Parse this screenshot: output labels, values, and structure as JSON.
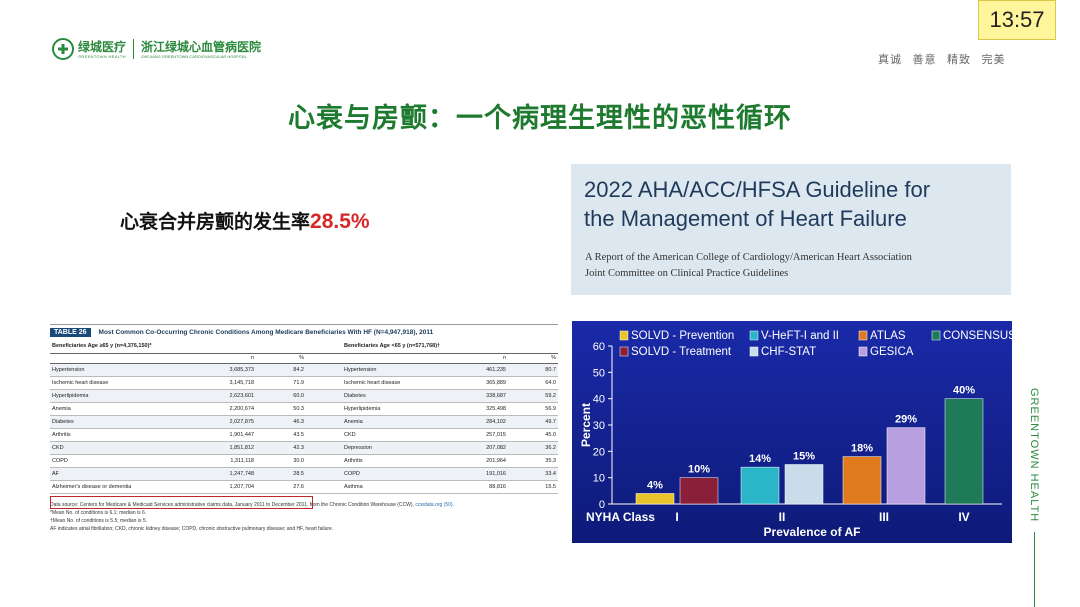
{
  "header": {
    "logo_cn": "绿城医疗",
    "logo_en": "GREENTOWN HEALTH",
    "hospital_cn": "浙江绿城心血管病医院",
    "hospital_en": "ZHEJIANG GREENTOWN CARDIOVASCULAR HOSPITAL",
    "motto": "真诚 善意 精致 完美",
    "clock": "13:57",
    "brand_color": "#2b8a3e"
  },
  "slide": {
    "title": "心衰与房颤：一个病理生理性的恶性循环",
    "incidence_label": "心衰合并房颤的发生率",
    "incidence_value": "28.5%",
    "side_text": "GREENTOWN HEALTH"
  },
  "guideline": {
    "title_line1": "2022 AHA/ACC/HFSA Guideline for",
    "title_line2": "the Management of Heart Failure",
    "sub_line1": "A Report of the American College of Cardiology/American Heart Association",
    "sub_line2": "Joint Committee on Clinical Practice Guidelines"
  },
  "table": {
    "tag": "TABLE 26",
    "caption": "Most Common Co-Occurring Chronic Conditions Among Medicare Beneficiaries With HF (N=4,947,918), 2011",
    "left_group": "Beneficiaries Age ≥65 y (n=4,376,150)*",
    "right_group": "Beneficiaries Age <65 y (n=571,768)†",
    "col_n": "n",
    "col_pct": "%",
    "rows": [
      {
        "l_name": "Hypertension",
        "l_n": "3,685,373",
        "l_pct": "84.2",
        "r_name": "Hypertension",
        "r_n": "461,235",
        "r_pct": "80.7"
      },
      {
        "l_name": "Ischemic heart disease",
        "l_n": "3,145,718",
        "l_pct": "71.9",
        "r_name": "Ischemic heart disease",
        "r_n": "365,889",
        "r_pct": "64.0"
      },
      {
        "l_name": "Hyperlipidemia",
        "l_n": "2,623,601",
        "l_pct": "60.0",
        "r_name": "Diabetes",
        "r_n": "338,687",
        "r_pct": "59.2"
      },
      {
        "l_name": "Anemia",
        "l_n": "2,200,674",
        "l_pct": "50.3",
        "r_name": "Hyperlipidemia",
        "r_n": "325,498",
        "r_pct": "56.9"
      },
      {
        "l_name": "Diabetes",
        "l_n": "2,027,875",
        "l_pct": "46.3",
        "r_name": "Anemia",
        "r_n": "284,102",
        "r_pct": "49.7"
      },
      {
        "l_name": "Arthritis",
        "l_n": "1,901,447",
        "l_pct": "43.5",
        "r_name": "CKD",
        "r_n": "257,015",
        "r_pct": "45.0"
      },
      {
        "l_name": "CKD",
        "l_n": "1,851,812",
        "l_pct": "42.3",
        "r_name": "Depression",
        "r_n": "207,082",
        "r_pct": "36.2"
      },
      {
        "l_name": "COPD",
        "l_n": "1,311,118",
        "l_pct": "30.0",
        "r_name": "Arthritis",
        "r_n": "201,964",
        "r_pct": "35.3"
      },
      {
        "l_name": "AF",
        "l_n": "1,247,748",
        "l_pct": "28.5",
        "r_name": "COPD",
        "r_n": "191,016",
        "r_pct": "33.4"
      },
      {
        "l_name": "Alzheimer's disease or dementia",
        "l_n": "1,207,704",
        "l_pct": "27.6",
        "r_name": "Asthma",
        "r_n": "88,816",
        "r_pct": "15.5"
      }
    ],
    "note_source": "Data source: Centers for Medicare & Medicaid Services administrative claims data, January 2011 to December 2011, from the Chronic Condition Warehouse (CCW), ",
    "note_link": "ccwdata.org (50).",
    "note_1": "*Mean No. of conditions is 6.1; median is 6.",
    "note_2": "†Mean No. of conditions is 5.5; median is 5.",
    "note_3": "AF indicates atrial fibrillation; CKD, chronic kidney disease; COPD, chronic obstructive pulmonary disease; and HF, heart failure.",
    "highlight_color": "#c0262d"
  },
  "chart_data": {
    "type": "bar",
    "title": "",
    "xlabel": "Prevalence of AF",
    "ylabel": "Percent",
    "category_axis_label": "NYHA Class",
    "ylim": [
      0,
      60
    ],
    "yticks": [
      0,
      10,
      20,
      30,
      40,
      50,
      60
    ],
    "groups": [
      "I",
      "II",
      "III",
      "IV"
    ],
    "series": [
      {
        "name": "SOLVD - Prevention",
        "group": "I",
        "value": 4,
        "label": "4%",
        "color": "#e8c42a"
      },
      {
        "name": "SOLVD - Treatment",
        "group": "I",
        "value": 10,
        "label": "10%",
        "color": "#8a1f3a"
      },
      {
        "name": "V-HeFT-I and II",
        "group": "II",
        "value": 14,
        "label": "14%",
        "color": "#2bb5c8"
      },
      {
        "name": "CHF-STAT",
        "group": "II",
        "value": 15,
        "label": "15%",
        "color": "#c8dcea"
      },
      {
        "name": "ATLAS",
        "group": "III",
        "value": 18,
        "label": "18%",
        "color": "#e07a1f"
      },
      {
        "name": "GESICA",
        "group": "III",
        "value": 29,
        "label": "29%",
        "color": "#b8a0e0"
      },
      {
        "name": "CONSENSUS",
        "group": "IV",
        "value": 40,
        "label": "40%",
        "color": "#1f7a5a"
      }
    ],
    "legend_placement": "top",
    "background": "#1a2a9a"
  }
}
